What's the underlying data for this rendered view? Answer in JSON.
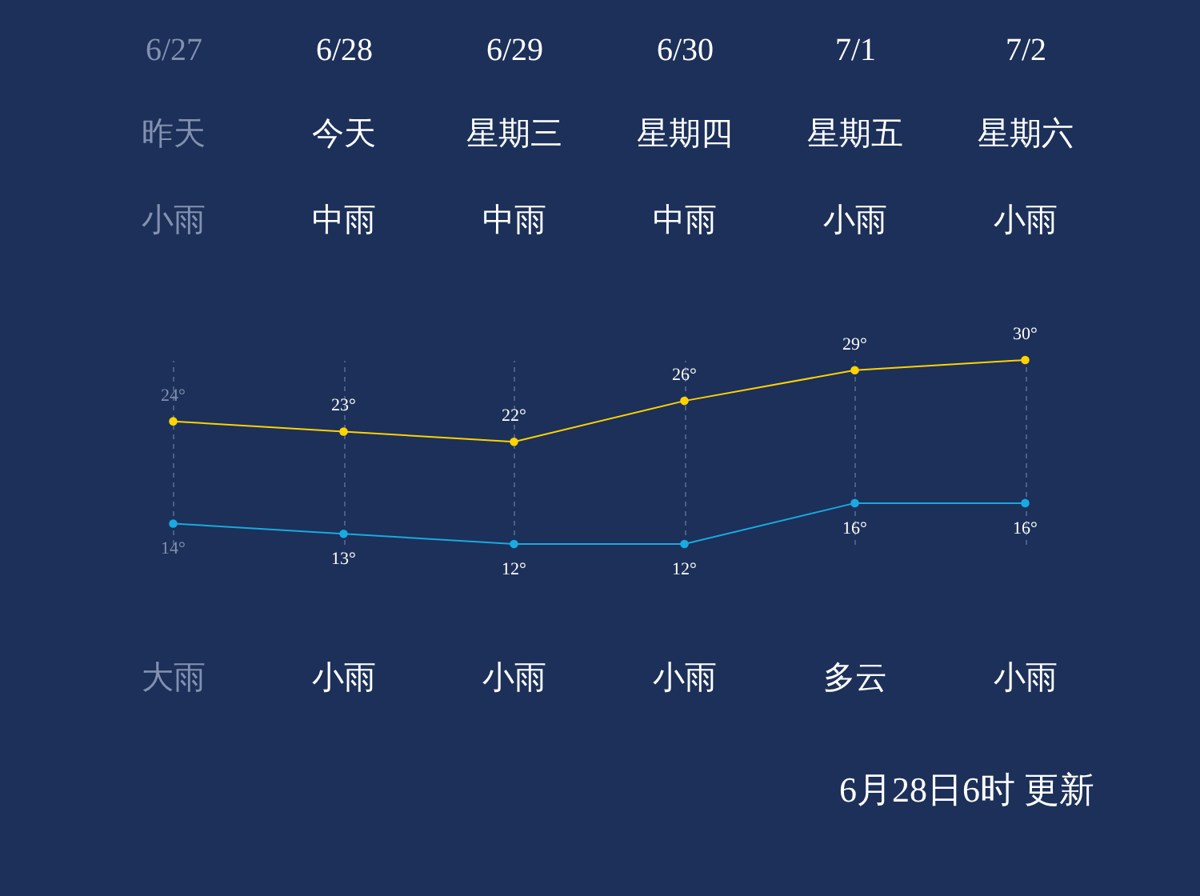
{
  "chart_data": {
    "type": "line",
    "categories": [
      "6/27",
      "6/28",
      "6/29",
      "6/30",
      "7/1",
      "7/2"
    ],
    "series": [
      {
        "color": "#ffd200",
        "values": [
          24,
          23,
          22,
          26,
          29,
          30
        ],
        "value_labels": [
          "24°",
          "23°",
          "22°",
          "26°",
          "29°",
          "30°"
        ]
      },
      {
        "color": "#1aa9e0",
        "values": [
          14,
          13,
          12,
          12,
          16,
          16
        ],
        "value_labels": [
          "14°",
          "13°",
          "12°",
          "12°",
          "16°",
          "16°"
        ]
      }
    ],
    "grid": "x",
    "marker": "circle",
    "annotations": [
      "昨天",
      "今天",
      "星期三",
      "星期四",
      "星期五",
      "星期六",
      "小雨",
      "中雨",
      "中雨",
      "中雨",
      "小雨",
      "小雨",
      "大雨",
      "小雨",
      "小雨",
      "小雨",
      "多云",
      "小雨",
      "6月28日6时 更新"
    ]
  }
}
